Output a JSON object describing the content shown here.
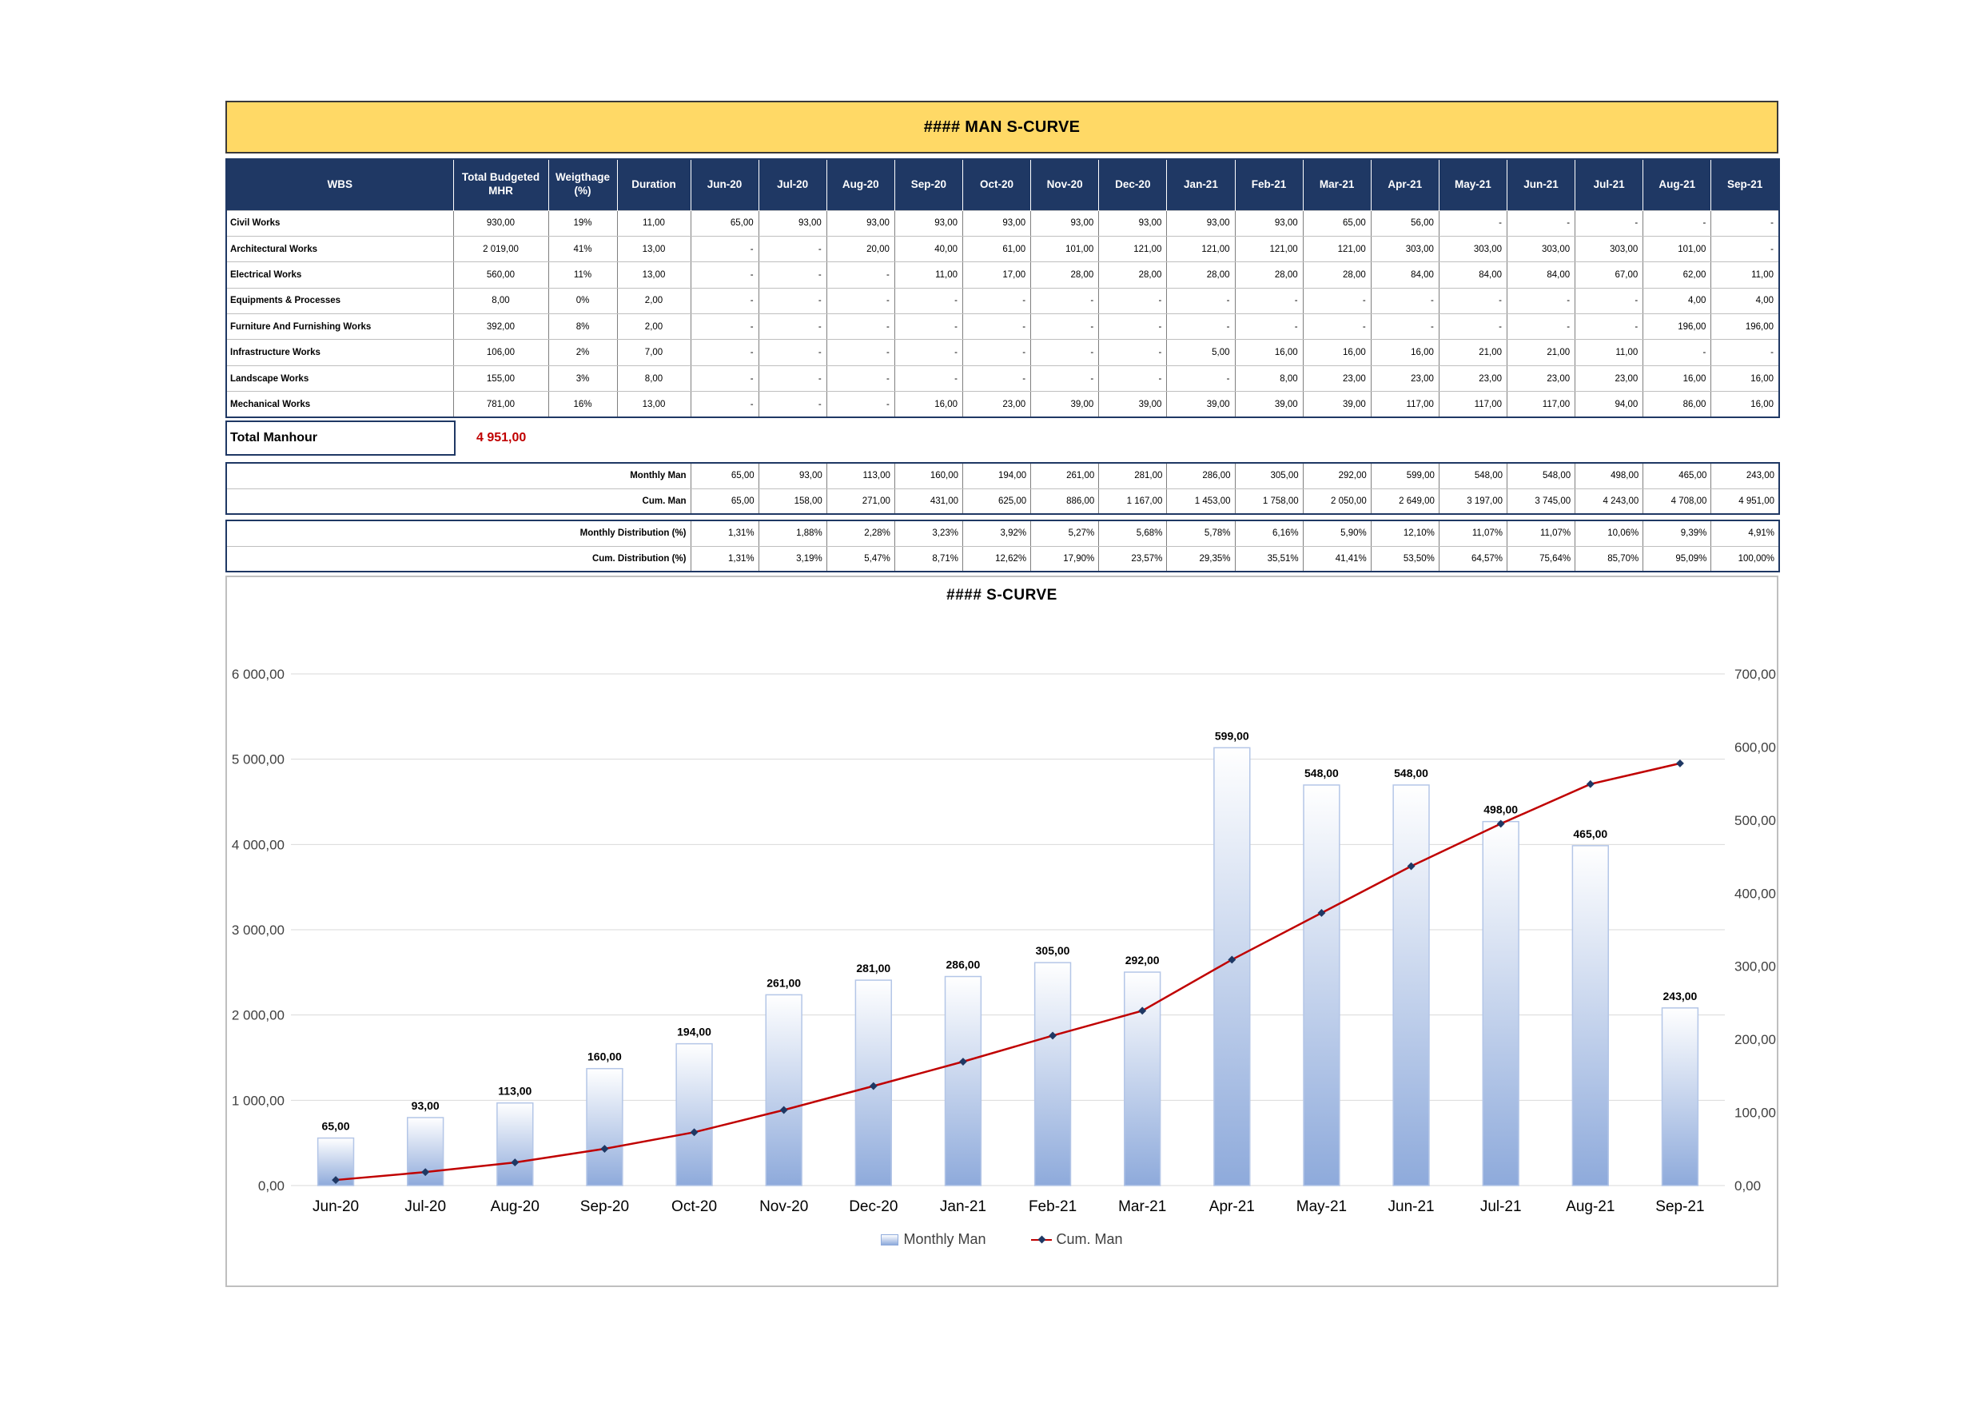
{
  "title": "#### MAN S-CURVE",
  "table": {
    "headers": {
      "wbs": "WBS",
      "budget": "Total Budgeted MHR",
      "weight": "Weigthage (%)",
      "duration": "Duration"
    },
    "months": [
      "Jun-20",
      "Jul-20",
      "Aug-20",
      "Sep-20",
      "Oct-20",
      "Nov-20",
      "Dec-20",
      "Jan-21",
      "Feb-21",
      "Mar-21",
      "Apr-21",
      "May-21",
      "Jun-21",
      "Jul-21",
      "Aug-21",
      "Sep-21"
    ],
    "rows": [
      {
        "name": "Civil Works",
        "budget": "930,00",
        "weight": "19%",
        "duration": "11,00",
        "values": [
          "65,00",
          "93,00",
          "93,00",
          "93,00",
          "93,00",
          "93,00",
          "93,00",
          "93,00",
          "93,00",
          "65,00",
          "56,00",
          "-",
          "-",
          "-",
          "-",
          "-"
        ]
      },
      {
        "name": "Architectural Works",
        "budget": "2 019,00",
        "weight": "41%",
        "duration": "13,00",
        "values": [
          "-",
          "-",
          "20,00",
          "40,00",
          "61,00",
          "101,00",
          "121,00",
          "121,00",
          "121,00",
          "121,00",
          "303,00",
          "303,00",
          "303,00",
          "303,00",
          "101,00",
          "-"
        ]
      },
      {
        "name": "Electrical Works",
        "budget": "560,00",
        "weight": "11%",
        "duration": "13,00",
        "values": [
          "-",
          "-",
          "-",
          "11,00",
          "17,00",
          "28,00",
          "28,00",
          "28,00",
          "28,00",
          "28,00",
          "84,00",
          "84,00",
          "84,00",
          "67,00",
          "62,00",
          "11,00"
        ]
      },
      {
        "name": "Equipments & Processes",
        "budget": "8,00",
        "weight": "0%",
        "duration": "2,00",
        "values": [
          "-",
          "-",
          "-",
          "-",
          "-",
          "-",
          "-",
          "-",
          "-",
          "-",
          "-",
          "-",
          "-",
          "-",
          "4,00",
          "4,00"
        ]
      },
      {
        "name": "Furniture And Furnishing Works",
        "budget": "392,00",
        "weight": "8%",
        "duration": "2,00",
        "values": [
          "-",
          "-",
          "-",
          "-",
          "-",
          "-",
          "-",
          "-",
          "-",
          "-",
          "-",
          "-",
          "-",
          "-",
          "196,00",
          "196,00"
        ]
      },
      {
        "name": "Infrastructure Works",
        "budget": "106,00",
        "weight": "2%",
        "duration": "7,00",
        "values": [
          "-",
          "-",
          "-",
          "-",
          "-",
          "-",
          "-",
          "5,00",
          "16,00",
          "16,00",
          "16,00",
          "21,00",
          "21,00",
          "11,00",
          "-",
          "-"
        ]
      },
      {
        "name": "Landscape Works",
        "budget": "155,00",
        "weight": "3%",
        "duration": "8,00",
        "values": [
          "-",
          "-",
          "-",
          "-",
          "-",
          "-",
          "-",
          "-",
          "8,00",
          "23,00",
          "23,00",
          "23,00",
          "23,00",
          "23,00",
          "16,00",
          "16,00"
        ]
      },
      {
        "name": "Mechanical Works",
        "budget": "781,00",
        "weight": "16%",
        "duration": "13,00",
        "values": [
          "-",
          "-",
          "-",
          "16,00",
          "23,00",
          "39,00",
          "39,00",
          "39,00",
          "39,00",
          "39,00",
          "117,00",
          "117,00",
          "117,00",
          "94,00",
          "86,00",
          "16,00"
        ]
      }
    ]
  },
  "total": {
    "label": "Total Manhour",
    "value": "4 951,00"
  },
  "man_summary": [
    {
      "label": "Monthly Man",
      "values": [
        "65,00",
        "93,00",
        "113,00",
        "160,00",
        "194,00",
        "261,00",
        "281,00",
        "286,00",
        "305,00",
        "292,00",
        "599,00",
        "548,00",
        "548,00",
        "498,00",
        "465,00",
        "243,00"
      ]
    },
    {
      "label": "Cum. Man",
      "values": [
        "65,00",
        "158,00",
        "271,00",
        "431,00",
        "625,00",
        "886,00",
        "1 167,00",
        "1 453,00",
        "1 758,00",
        "2 050,00",
        "2 649,00",
        "3 197,00",
        "3 745,00",
        "4 243,00",
        "4 708,00",
        "4 951,00"
      ]
    }
  ],
  "dist_summary": [
    {
      "label": "Monthly Distribution (%)",
      "values": [
        "1,31%",
        "1,88%",
        "2,28%",
        "3,23%",
        "3,92%",
        "5,27%",
        "5,68%",
        "5,78%",
        "6,16%",
        "5,90%",
        "12,10%",
        "11,07%",
        "11,07%",
        "10,06%",
        "9,39%",
        "4,91%"
      ]
    },
    {
      "label": "Cum. Distribution (%)",
      "values": [
        "1,31%",
        "3,19%",
        "5,47%",
        "8,71%",
        "12,62%",
        "17,90%",
        "23,57%",
        "29,35%",
        "35,51%",
        "41,41%",
        "53,50%",
        "64,57%",
        "75,64%",
        "85,70%",
        "95,09%",
        "100,00%"
      ]
    }
  ],
  "chart_data": {
    "type": "bar",
    "title": "#### S-CURVE",
    "categories": [
      "Jun-20",
      "Jul-20",
      "Aug-20",
      "Sep-20",
      "Oct-20",
      "Nov-20",
      "Dec-20",
      "Jan-21",
      "Feb-21",
      "Mar-21",
      "Apr-21",
      "May-21",
      "Jun-21",
      "Jul-21",
      "Aug-21",
      "Sep-21"
    ],
    "series": [
      {
        "name": "Monthly Man",
        "type": "bar",
        "axis": "secondary",
        "values": [
          65,
          93,
          113,
          160,
          194,
          261,
          281,
          286,
          305,
          292,
          599,
          548,
          548,
          498,
          465,
          243
        ],
        "labels": [
          "65,00",
          "93,00",
          "113,00",
          "160,00",
          "194,00",
          "261,00",
          "281,00",
          "286,00",
          "305,00",
          "292,00",
          "599,00",
          "548,00",
          "548,00",
          "498,00",
          "465,00",
          "243,00"
        ]
      },
      {
        "name": "Cum. Man",
        "type": "line",
        "axis": "primary",
        "values": [
          65,
          158,
          271,
          431,
          625,
          886,
          1167,
          1453,
          1758,
          2050,
          2649,
          3197,
          3745,
          4243,
          4708,
          4951
        ]
      }
    ],
    "y_left": {
      "range": [
        0,
        6000
      ],
      "ticks": [
        "0,00",
        "1 000,00",
        "2 000,00",
        "3 000,00",
        "4 000,00",
        "5 000,00",
        "6 000,00"
      ]
    },
    "y_right": {
      "range": [
        0,
        700
      ],
      "ticks": [
        "0,00",
        "100,00",
        "200,00",
        "300,00",
        "400,00",
        "500,00",
        "600,00",
        "700,00"
      ]
    },
    "grid": true,
    "legend_position": "bottom",
    "colors": {
      "bar_top": "#ffffff",
      "bar_bottom": "#8eaadb",
      "bar_border": "#b4c6e7",
      "line": "#c00000",
      "marker": "#1f3864",
      "grid": "#d9d9d9"
    }
  }
}
